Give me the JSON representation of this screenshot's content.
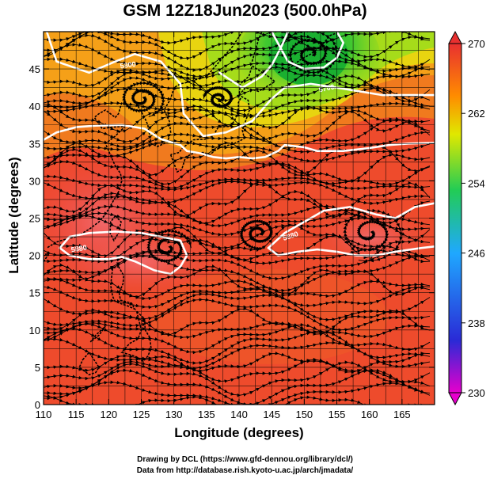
{
  "title": "GSM 12Z18Jun2023 (500.0hPa)",
  "xlabel": "Longitude (degrees)",
  "ylabel": "Latitude  (degrees)",
  "credits": [
    "Drawing by DCL (https://www.gfd-dennou.org/library/dcl/)",
    "Data from http://database.rish.kyoto-u.ac.jp/arch/jmadata/"
  ],
  "chart_data": {
    "type": "heatmap",
    "title": "GSM 12Z18Jun2023 (500.0hPa)",
    "xlabel": "Longitude (degrees)",
    "ylabel": "Latitude  (degrees)",
    "xlim": [
      110,
      170
    ],
    "ylim": [
      0,
      50
    ],
    "x_ticks": [
      110,
      115,
      120,
      125,
      130,
      135,
      140,
      145,
      150,
      155,
      160,
      165
    ],
    "y_ticks": [
      0,
      5,
      10,
      15,
      20,
      25,
      30,
      35,
      40,
      45
    ],
    "grid": true,
    "colorbar": {
      "range": [
        230,
        270
      ],
      "ticks": [
        230,
        238,
        246,
        254,
        262,
        270
      ],
      "colors": [
        "#e600cc",
        "#2a2ad6",
        "#1fa8ff",
        "#22cc55",
        "#e0e800",
        "#ff8c00",
        "#e83030"
      ],
      "placement": "right"
    },
    "contour_labels": [
      "5800",
      "5700",
      "5880",
      "5880"
    ],
    "contour_color": "#ffffff",
    "streamline_color": "#000000",
    "coastline_color": "#000000"
  }
}
